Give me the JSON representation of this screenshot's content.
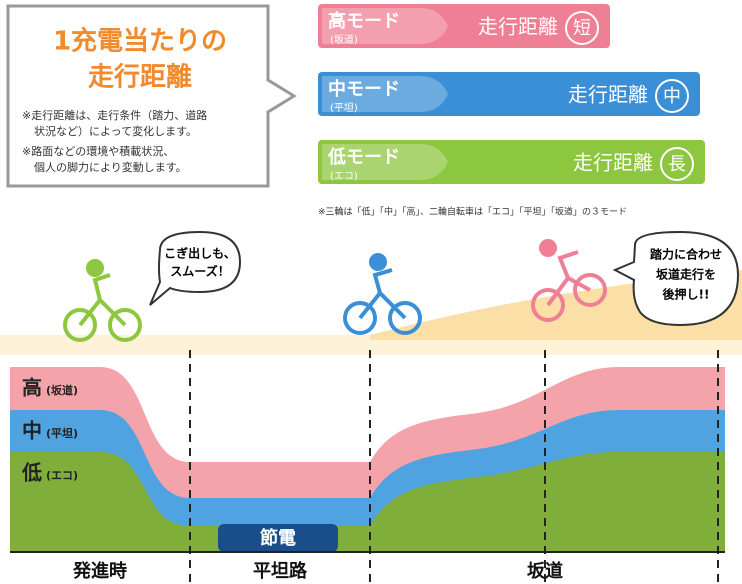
{
  "callout": {
    "title_lines": [
      "1充電当たりの",
      "走行距離"
    ],
    "notes": [
      "※走行距離は、走行条件（踏力、道路",
      "状況など）によって変化します。",
      "※路面などの環境や積載状況、",
      "個人の脚力により変動します。"
    ]
  },
  "modes": [
    {
      "name": "高モード",
      "sub": "(坂道)",
      "label": "走行距離",
      "mark": "短"
    },
    {
      "name": "中モード",
      "sub": "(平坦)",
      "label": "走行距離",
      "mark": "中"
    },
    {
      "name": "低モード",
      "sub": "(エコ)",
      "label": "走行距離",
      "mark": "長"
    }
  ],
  "footnote": "※三輪は「低」「中」「高」、二輪自転車は「エコ」「平坦」「坂道」の３モード",
  "bubbles": [
    {
      "lines": [
        "こぎ出しも、",
        "スムーズ！"
      ]
    },
    {
      "lines": [
        "踏力に合わせ",
        "坂道走行を",
        "後押し!!"
      ]
    }
  ],
  "bands": [
    {
      "name": "高",
      "sub": "(坂道)"
    },
    {
      "name": "中",
      "sub": "(平坦)"
    },
    {
      "name": "低",
      "sub": "(エコ)"
    }
  ],
  "saving": "節電",
  "sections": [
    "発進時",
    "平坦路",
    "坂道"
  ]
}
